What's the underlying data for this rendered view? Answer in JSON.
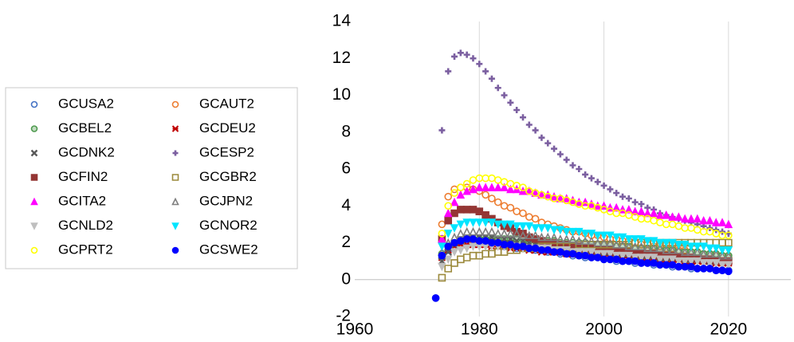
{
  "chart_data": {
    "type": "scatter",
    "legend": "left",
    "grid": true,
    "xlim": [
      1960,
      2030
    ],
    "xticks": [
      1960,
      1980,
      2000,
      2020
    ],
    "ylim": [
      -2,
      14
    ],
    "yticks": [
      -2,
      0,
      2,
      4,
      6,
      8,
      10,
      12,
      14
    ],
    "x": [
      1973,
      1974,
      1975,
      1976,
      1977,
      1978,
      1979,
      1980,
      1981,
      1982,
      1983,
      1984,
      1985,
      1986,
      1987,
      1988,
      1989,
      1990,
      1991,
      1992,
      1993,
      1994,
      1995,
      1996,
      1997,
      1998,
      1999,
      2000,
      2001,
      2002,
      2003,
      2004,
      2005,
      2006,
      2007,
      2008,
      2009,
      2010,
      2011,
      2012,
      2013,
      2014,
      2015,
      2016,
      2017,
      2018,
      2019,
      2020
    ],
    "series": [
      {
        "name": "GCUSA2",
        "color": "#4472c4",
        "marker": "circle-open",
        "values": [
          -1.0,
          1.2,
          1.6,
          1.8,
          1.9,
          2.0,
          2.0,
          2.0,
          2.0,
          1.9,
          1.9,
          1.8,
          1.8,
          1.7,
          1.7,
          1.7,
          1.6,
          1.6,
          1.5,
          1.5,
          1.4,
          1.4,
          1.3,
          1.3,
          1.2,
          1.2,
          1.2,
          1.1,
          1.1,
          1.0,
          1.0,
          1.0,
          0.9,
          0.9,
          0.9,
          0.8,
          0.8,
          0.8,
          0.7,
          0.7,
          0.7,
          0.6,
          0.6,
          0.6,
          0.6,
          0.5,
          0.5,
          0.5
        ]
      },
      {
        "name": "GCAUT2",
        "color": "#ed7d31",
        "marker": "circle-open",
        "values": [
          null,
          3.0,
          4.5,
          4.9,
          5.0,
          5.0,
          4.9,
          4.8,
          4.6,
          4.4,
          4.2,
          4.0,
          3.9,
          3.7,
          3.6,
          3.4,
          3.3,
          3.1,
          3.0,
          2.9,
          2.8,
          2.7,
          2.6,
          2.6,
          2.5,
          2.4,
          2.4,
          2.3,
          2.2,
          2.2,
          2.1,
          2.1,
          2.0,
          1.9,
          1.9,
          1.8,
          1.8,
          1.7,
          1.7,
          1.6,
          1.6,
          1.5,
          1.5,
          1.4,
          1.4,
          1.3,
          1.3,
          1.2
        ]
      },
      {
        "name": "GCBEL2",
        "color": "#4e9a4e",
        "marker": "circle-cross",
        "values": [
          null,
          1.4,
          1.8,
          2.0,
          2.1,
          2.2,
          2.2,
          2.2,
          2.2,
          2.2,
          2.2,
          2.2,
          2.2,
          2.2,
          2.2,
          2.1,
          2.1,
          2.1,
          2.1,
          2.1,
          2.0,
          2.0,
          2.0,
          2.0,
          2.0,
          1.9,
          1.9,
          1.9,
          1.9,
          1.8,
          1.8,
          1.8,
          1.7,
          1.7,
          1.7,
          1.7,
          1.6,
          1.6,
          1.6,
          1.5,
          1.5,
          1.5,
          1.5,
          1.4,
          1.4,
          1.4,
          1.3,
          1.3
        ]
      },
      {
        "name": "GCDEU2",
        "color": "#c00000",
        "marker": "asterisk",
        "values": [
          null,
          1.2,
          1.6,
          1.8,
          1.9,
          1.9,
          1.9,
          1.9,
          1.9,
          1.8,
          1.8,
          1.8,
          1.7,
          1.7,
          1.7,
          1.6,
          1.6,
          1.5,
          1.5,
          1.5,
          1.5,
          1.4,
          1.4,
          1.4,
          1.4,
          1.3,
          1.3,
          1.3,
          1.3,
          1.3,
          1.2,
          1.2,
          1.2,
          1.2,
          1.2,
          1.1,
          1.1,
          1.1,
          1.1,
          1.1,
          1.0,
          1.0,
          1.0,
          1.0,
          1.0,
          0.9,
          0.9,
          0.9
        ]
      },
      {
        "name": "GCDNK2",
        "color": "#595959",
        "marker": "x",
        "values": [
          null,
          1.0,
          1.5,
          1.9,
          2.1,
          2.2,
          2.3,
          2.3,
          2.3,
          2.3,
          2.2,
          2.2,
          2.2,
          2.1,
          2.1,
          2.0,
          2.0,
          1.9,
          1.9,
          1.8,
          1.8,
          1.7,
          1.7,
          1.7,
          1.6,
          1.6,
          1.5,
          1.5,
          1.5,
          1.4,
          1.4,
          1.4,
          1.3,
          1.3,
          1.3,
          1.3,
          1.2,
          1.2,
          1.2,
          1.2,
          1.1,
          1.1,
          1.1,
          1.1,
          1.0,
          1.0,
          1.0,
          1.0
        ]
      },
      {
        "name": "GCESP2",
        "color": "#7b5fa0",
        "marker": "plus",
        "values": [
          null,
          8.1,
          11.3,
          12.1,
          12.3,
          12.2,
          12.0,
          11.7,
          11.3,
          10.9,
          10.4,
          10.0,
          9.6,
          9.2,
          8.8,
          8.4,
          8.1,
          7.7,
          7.4,
          7.1,
          6.8,
          6.5,
          6.2,
          6.0,
          5.7,
          5.5,
          5.3,
          5.1,
          4.9,
          4.7,
          4.5,
          4.4,
          4.2,
          4.1,
          3.9,
          3.8,
          3.6,
          3.5,
          3.4,
          3.3,
          3.2,
          3.1,
          3.0,
          2.9,
          2.8,
          2.7,
          2.6,
          2.5
        ]
      },
      {
        "name": "GCFIN2",
        "color": "#943634",
        "marker": "square",
        "values": [
          null,
          2.2,
          3.2,
          3.6,
          3.8,
          3.8,
          3.8,
          3.7,
          3.5,
          3.3,
          3.1,
          2.9,
          2.8,
          2.6,
          2.5,
          2.3,
          2.2,
          2.1,
          2.0,
          2.0,
          1.9,
          1.9,
          1.8,
          1.8,
          1.7,
          1.7,
          1.6,
          1.6,
          1.6,
          1.5,
          1.5,
          1.5,
          1.4,
          1.4,
          1.4,
          1.4,
          1.3,
          1.3,
          1.3,
          1.2,
          1.2,
          1.2,
          1.1,
          1.1,
          1.1,
          1.0,
          1.0,
          1.0
        ]
      },
      {
        "name": "GCGBR2",
        "color": "#9c8a3c",
        "marker": "square-open",
        "values": [
          null,
          0.1,
          0.6,
          0.9,
          1.1,
          1.2,
          1.3,
          1.3,
          1.4,
          1.4,
          1.5,
          1.5,
          1.6,
          1.6,
          1.7,
          1.7,
          1.7,
          1.8,
          1.8,
          1.8,
          1.8,
          1.8,
          1.8,
          1.9,
          1.9,
          1.9,
          1.9,
          1.9,
          1.9,
          1.9,
          1.9,
          1.9,
          2.0,
          2.0,
          2.0,
          2.0,
          2.0,
          2.0,
          2.0,
          2.0,
          2.0,
          2.0,
          2.0,
          2.0,
          2.0,
          2.0,
          2.0,
          2.0
        ]
      },
      {
        "name": "GCITA2",
        "color": "#ff00ff",
        "marker": "triangle",
        "values": [
          null,
          2.2,
          3.6,
          4.2,
          4.6,
          4.8,
          4.9,
          5.0,
          5.0,
          5.0,
          5.0,
          5.0,
          4.9,
          4.9,
          4.8,
          4.8,
          4.7,
          4.6,
          4.6,
          4.5,
          4.4,
          4.4,
          4.3,
          4.2,
          4.2,
          4.1,
          4.0,
          4.0,
          3.9,
          3.9,
          3.8,
          3.8,
          3.7,
          3.7,
          3.6,
          3.6,
          3.5,
          3.5,
          3.4,
          3.4,
          3.3,
          3.3,
          3.3,
          3.2,
          3.2,
          3.1,
          3.1,
          3.0
        ]
      },
      {
        "name": "GCJPN2",
        "color": "#7f7f7f",
        "marker": "triangle-open",
        "values": [
          null,
          1.5,
          2.0,
          2.3,
          2.5,
          2.6,
          2.6,
          2.6,
          2.6,
          2.6,
          2.5,
          2.5,
          2.5,
          2.5,
          2.4,
          2.4,
          2.4,
          2.3,
          2.3,
          2.3,
          2.2,
          2.2,
          2.2,
          2.1,
          2.1,
          2.1,
          2.0,
          2.0,
          2.0,
          1.9,
          1.9,
          1.8,
          1.8,
          1.8,
          1.7,
          1.7,
          1.7,
          1.6,
          1.6,
          1.6,
          1.5,
          1.5,
          1.5,
          1.4,
          1.4,
          1.4,
          1.3,
          1.3
        ]
      },
      {
        "name": "GCNLD2",
        "color": "#bfbfbf",
        "marker": "triangle-down",
        "values": [
          null,
          0.7,
          1.1,
          1.5,
          1.6,
          1.7,
          1.8,
          1.8,
          1.8,
          1.8,
          1.8,
          1.8,
          1.8,
          1.8,
          1.7,
          1.7,
          1.7,
          1.7,
          1.7,
          1.6,
          1.6,
          1.6,
          1.5,
          1.5,
          1.5,
          1.5,
          1.4,
          1.4,
          1.4,
          1.3,
          1.3,
          1.3,
          1.2,
          1.2,
          1.2,
          1.2,
          1.1,
          1.1,
          1.1,
          1.0,
          1.0,
          1.0,
          1.0,
          0.9,
          0.9,
          0.9,
          0.8,
          0.8
        ]
      },
      {
        "name": "GCNOR2",
        "color": "#00e5ff",
        "marker": "triangle-down",
        "values": [
          null,
          1.8,
          2.5,
          2.8,
          3.0,
          3.1,
          3.1,
          3.1,
          3.1,
          3.1,
          3.0,
          3.0,
          3.0,
          2.9,
          2.9,
          2.9,
          2.8,
          2.8,
          2.8,
          2.7,
          2.7,
          2.6,
          2.6,
          2.6,
          2.5,
          2.5,
          2.4,
          2.4,
          2.4,
          2.3,
          2.3,
          2.2,
          2.2,
          2.2,
          2.1,
          2.1,
          2.0,
          2.0,
          2.0,
          1.9,
          1.9,
          1.8,
          1.8,
          1.8,
          1.7,
          1.7,
          1.6,
          1.6
        ]
      },
      {
        "name": "GCPRT2",
        "color": "#ffff00",
        "marker": "circle-open",
        "values": [
          null,
          2.5,
          4.0,
          4.7,
          5.0,
          5.2,
          5.4,
          5.5,
          5.5,
          5.5,
          5.4,
          5.3,
          5.2,
          5.1,
          5.0,
          4.8,
          4.7,
          4.6,
          4.5,
          4.4,
          4.4,
          4.3,
          4.2,
          4.1,
          4.0,
          4.0,
          3.9,
          3.8,
          3.7,
          3.6,
          3.6,
          3.5,
          3.4,
          3.3,
          3.3,
          3.2,
          3.1,
          3.0,
          3.0,
          2.9,
          2.8,
          2.8,
          2.7,
          2.6,
          2.6,
          2.5,
          2.4,
          2.4
        ]
      },
      {
        "name": "GCSWE2",
        "color": "#0000ff",
        "marker": "circle",
        "values": [
          -1.0,
          1.3,
          1.8,
          2.0,
          2.1,
          2.2,
          2.2,
          2.1,
          2.1,
          2.0,
          2.0,
          1.9,
          1.9,
          1.8,
          1.8,
          1.7,
          1.7,
          1.6,
          1.6,
          1.5,
          1.5,
          1.4,
          1.4,
          1.3,
          1.3,
          1.2,
          1.2,
          1.1,
          1.1,
          1.1,
          1.0,
          1.0,
          1.0,
          0.9,
          0.9,
          0.9,
          0.8,
          0.8,
          0.8,
          0.7,
          0.7,
          0.7,
          0.6,
          0.6,
          0.6,
          0.5,
          0.5,
          0.45
        ]
      }
    ]
  }
}
